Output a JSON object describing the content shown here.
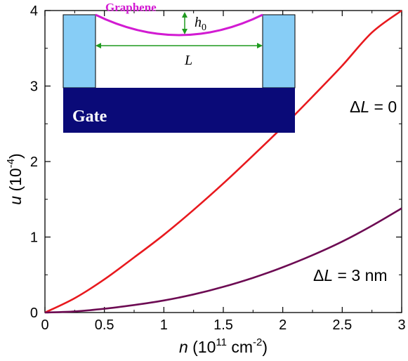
{
  "chart_data": {
    "type": "line",
    "xlabel": {
      "var": "n",
      "open": " (10",
      "exp": "11",
      "mid": " cm",
      "exp2": "-2",
      "close": ")"
    },
    "ylabel": {
      "var": "u",
      "open": " (10",
      "exp": "-4",
      "close": ")"
    },
    "xlim": [
      0,
      3
    ],
    "ylim": [
      0,
      4
    ],
    "xticks": [
      0,
      0.5,
      1,
      1.5,
      2,
      2.5,
      3
    ],
    "xtick_labels": [
      "0",
      "0.5",
      "1",
      "1.5",
      "2",
      "2.5",
      "3"
    ],
    "yticks": [
      0,
      1,
      2,
      3,
      4
    ],
    "ytick_labels": [
      "0",
      "1",
      "2",
      "3",
      "4"
    ],
    "grid": false,
    "series": [
      {
        "name": "ΔL = 0",
        "color": "#e8191e",
        "x": [
          0,
          0.25,
          0.5,
          0.75,
          1,
          1.25,
          1.5,
          1.75,
          2,
          2.25,
          2.5,
          2.75,
          3
        ],
        "y": [
          0,
          0.19,
          0.44,
          0.73,
          1.03,
          1.36,
          1.71,
          2.08,
          2.46,
          2.86,
          3.27,
          3.71,
          4.0
        ]
      },
      {
        "name": "ΔL = 3 nm",
        "color": "#6d0b53",
        "x": [
          0,
          0.25,
          0.5,
          0.75,
          1,
          1.25,
          1.5,
          1.75,
          2,
          2.25,
          2.5,
          2.75,
          3
        ],
        "y": [
          0,
          0.015,
          0.05,
          0.1,
          0.16,
          0.24,
          0.34,
          0.46,
          0.6,
          0.76,
          0.94,
          1.15,
          1.38
        ]
      }
    ],
    "annotations": [
      {
        "delta": "Δ",
        "var": "L",
        "rest": " = 0"
      },
      {
        "delta": "Δ",
        "var": "L",
        "rest": " = 3 nm"
      }
    ]
  },
  "inset": {
    "graphene_label": "Graphene",
    "height_label_var": "h",
    "height_label_sub": "0",
    "length_label": "L",
    "gate_label": "Gate",
    "colors": {
      "pillar": "#87cdf6",
      "gate": "#0a0a78",
      "membrane": "#d21bd2",
      "arrow": "#1f9a1f"
    }
  }
}
